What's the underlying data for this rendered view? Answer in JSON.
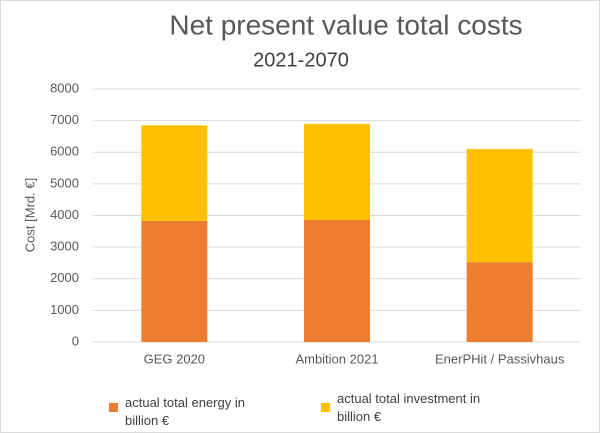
{
  "chart_data": {
    "type": "stacked_bar",
    "title": "Net present value total costs",
    "subtitle": "2021-2070",
    "y_label": "Cost  [Mrd. €]",
    "categories": [
      "GEG 2020",
      "Ambition 2021",
      "EnerPHit / Passivhaus"
    ],
    "series": [
      {
        "name": "actual total energy in billion €",
        "color": "#ed7d31",
        "values": [
          3830,
          3860,
          2520
        ]
      },
      {
        "name": "actual total investment in billion €",
        "color": "#ffc000",
        "values": [
          3020,
          3040,
          3580
        ]
      }
    ],
    "ylim": [
      0,
      8000
    ],
    "yticks": [
      0,
      1000,
      2000,
      3000,
      4000,
      5000,
      6000,
      7000,
      8000
    ],
    "grid": true
  }
}
